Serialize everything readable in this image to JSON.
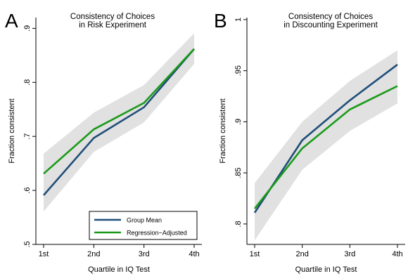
{
  "chart_data": [
    {
      "type": "line",
      "panel_label": "A",
      "title": [
        "Consistency of Choices",
        "in Risk Experiment"
      ],
      "xlabel": "Quartile in IQ Test",
      "ylabel": "Fraction consistent",
      "categories": [
        "1st",
        "2nd",
        "3rd",
        "4th"
      ],
      "ylim": [
        0.5,
        0.92
      ],
      "yticks": [
        0.5,
        0.6,
        0.7,
        0.8,
        0.9
      ],
      "ytick_labels": [
        ".5",
        ".6",
        ".7",
        ".8",
        ".9"
      ],
      "grid": false,
      "legend_position": "bottom-right",
      "series": [
        {
          "name": "Group Mean",
          "color": "#1f4e79",
          "values": [
            0.591,
            0.697,
            0.754,
            0.862
          ]
        },
        {
          "name": "Regression−Adjusted",
          "color": "#1a9a1a",
          "values": [
            0.631,
            0.713,
            0.762,
            0.862
          ]
        }
      ],
      "confidence_band": {
        "color": "#e1e1e1",
        "lower": [
          0.561,
          0.671,
          0.726,
          0.834
        ],
        "upper": [
          0.668,
          0.744,
          0.795,
          0.891
        ]
      }
    },
    {
      "type": "line",
      "panel_label": "B",
      "title": [
        "Consistency of Choices",
        "in Discounting Experiment"
      ],
      "xlabel": "Quartile in IQ Test",
      "ylabel": "Fraction consistent",
      "categories": [
        "1st",
        "2nd",
        "3rd",
        "4th"
      ],
      "ylim": [
        0.78,
        1.002
      ],
      "yticks": [
        0.8,
        0.85,
        0.9,
        0.95,
        1.0
      ],
      "ytick_labels": [
        ".8",
        ".85",
        ".9",
        ".95",
        "1"
      ],
      "grid": false,
      "series": [
        {
          "name": "Group Mean",
          "color": "#1f4e79",
          "values": [
            0.811,
            0.882,
            0.921,
            0.956
          ]
        },
        {
          "name": "Regression−Adjusted",
          "color": "#1a9a1a",
          "values": [
            0.815,
            0.874,
            0.912,
            0.935
          ]
        }
      ],
      "confidence_band": {
        "color": "#e1e1e1",
        "lower": [
          0.784,
          0.853,
          0.891,
          0.918
        ],
        "upper": [
          0.84,
          0.9,
          0.94,
          0.97
        ]
      }
    }
  ]
}
